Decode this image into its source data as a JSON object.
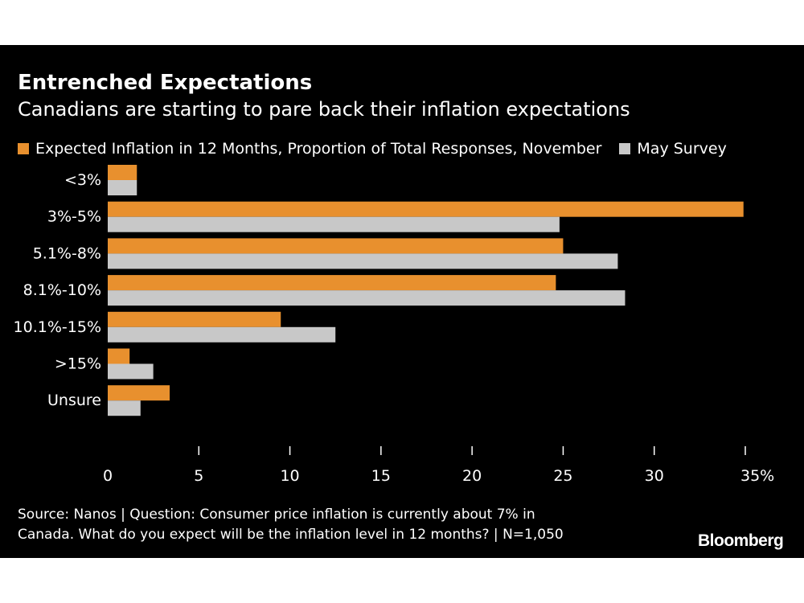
{
  "chart_data": {
    "type": "bar",
    "orientation": "horizontal",
    "title": "Entrenched Expectations",
    "subtitle": "Canadians are starting to pare back their inflation expectations",
    "categories": [
      "<3%",
      "3%-5%",
      "5.1%-8%",
      "8.1%-10%",
      "10.1%-15%",
      ">15%",
      "Unsure"
    ],
    "series": [
      {
        "name": "Expected Inflation in 12 Months, Proportion of Total Responses, November",
        "color": "#e8902e",
        "values": [
          1.6,
          34.9,
          25.0,
          24.6,
          9.5,
          1.2,
          3.4
        ]
      },
      {
        "name": "May Survey",
        "color": "#c8c8c8",
        "values": [
          1.6,
          24.8,
          28.0,
          28.4,
          12.5,
          2.5,
          1.8
        ]
      }
    ],
    "xlim": [
      0,
      35
    ],
    "xticks": [
      "0",
      "5",
      "10",
      "15",
      "20",
      "25",
      "30",
      "35%"
    ],
    "xtick_values": [
      0,
      5,
      10,
      15,
      20,
      25,
      30,
      35
    ]
  },
  "source": {
    "line1": "Source: Nanos | Question: Consumer price inflation is currently about 7% in",
    "line2": "Canada. What do you expect will be the inflation level in 12 months? | N=1,050"
  },
  "brand": "Bloomberg"
}
